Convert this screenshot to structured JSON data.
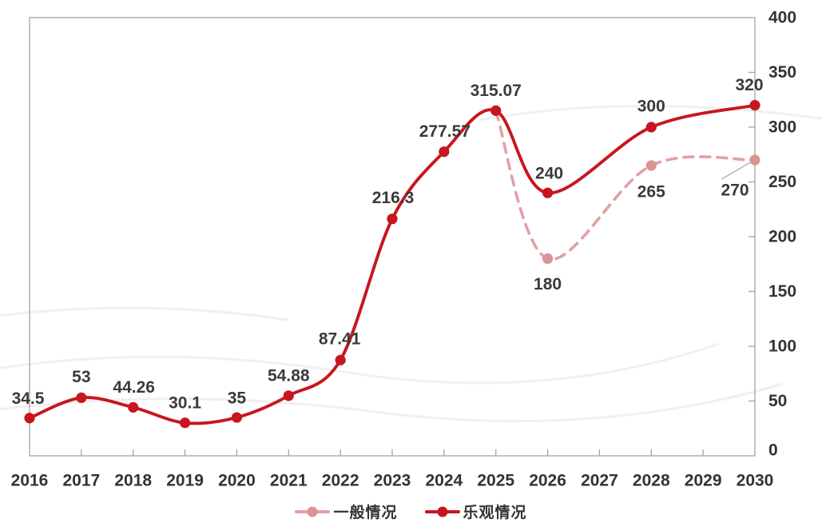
{
  "chart_data": {
    "type": "line",
    "title": "",
    "xlabel": "",
    "ylabel": "",
    "grid": false,
    "legend_position": "bottom",
    "x_axis": {
      "categories": [
        "2016",
        "2017",
        "2018",
        "2019",
        "2020",
        "2021",
        "2022",
        "2023",
        "2024",
        "2025",
        "2026",
        "2027",
        "2028",
        "2029",
        "2030"
      ]
    },
    "y_axis": {
      "side": "right",
      "min": 0,
      "max": 400,
      "tick_step": 50,
      "tick_labels": [
        "0",
        "50",
        "100",
        "150",
        "200",
        "250",
        "300",
        "350",
        "400"
      ]
    },
    "series": [
      {
        "name": "一般情况",
        "style": "dashed",
        "color": "#e2a0a4",
        "marker_color": "#dd9297",
        "points": [
          {
            "year": 2025,
            "value": 315.07,
            "label": "",
            "marker": false
          },
          {
            "year": 2026,
            "value": 180,
            "label": "180",
            "label_dx": 0,
            "label_dy": 32
          },
          {
            "year": 2028,
            "value": 265,
            "label": "265",
            "label_dx": 0,
            "label_dy": 33
          },
          {
            "year": 2030,
            "value": 270,
            "label": "270",
            "label_dx": -25,
            "label_dy": 38,
            "leader": {
              "x1_off": -42,
              "y1_off": 24,
              "x2_off": -4,
              "y2_off": 2
            }
          }
        ]
      },
      {
        "name": "乐观情况",
        "style": "solid",
        "color": "#c8161d",
        "marker_color": "#c8161d",
        "points": [
          {
            "year": 2016,
            "value": 34.5,
            "label": "34.5",
            "label_dx": -2,
            "label_dy": -24
          },
          {
            "year": 2017,
            "value": 53,
            "label": "53",
            "label_dx": 0,
            "label_dy": -26
          },
          {
            "year": 2018,
            "value": 44.26,
            "label": "44.26",
            "label_dx": 1,
            "label_dy": -25
          },
          {
            "year": 2019,
            "value": 30.1,
            "label": "30.1",
            "label_dx": 0,
            "label_dy": -25
          },
          {
            "year": 2020,
            "value": 35,
            "label": "35",
            "label_dx": 0,
            "label_dy": -24
          },
          {
            "year": 2021,
            "value": 54.88,
            "label": "54.88",
            "label_dx": 0,
            "label_dy": -25
          },
          {
            "year": 2022,
            "value": 87.41,
            "label": "87.41",
            "label_dx": -1,
            "label_dy": -26
          },
          {
            "year": 2023,
            "value": 216.3,
            "label": "216.3",
            "label_dx": 1,
            "label_dy": -26
          },
          {
            "year": 2024,
            "value": 277.57,
            "label": "277.57",
            "label_dx": 1,
            "label_dy": -25
          },
          {
            "year": 2025,
            "value": 315.07,
            "label": "315.07",
            "label_dx": 0,
            "label_dy": -25
          },
          {
            "year": 2026,
            "value": 240,
            "label": "240",
            "label_dx": 2,
            "label_dy": -24
          },
          {
            "year": 2028,
            "value": 300,
            "label": "300",
            "label_dx": 0,
            "label_dy": -26
          },
          {
            "year": 2030,
            "value": 320,
            "label": "320",
            "label_dx": -7,
            "label_dy": -25
          }
        ]
      }
    ],
    "colors": {
      "axis": "#a3a3a3",
      "tick_text": "#333333",
      "label_text": "#3a3a3a",
      "leader_line": "#b3b3b3",
      "watermark": "#f1efef"
    }
  }
}
